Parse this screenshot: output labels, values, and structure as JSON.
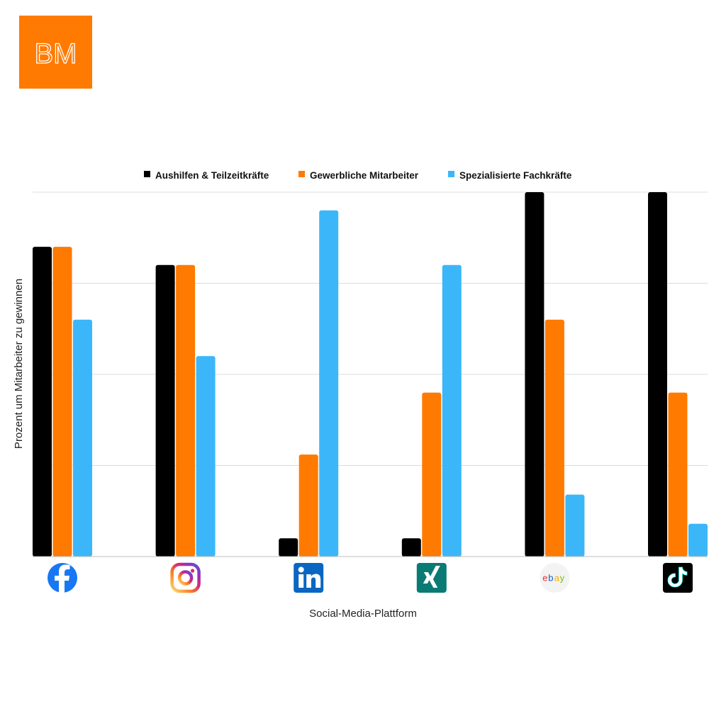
{
  "brand": {
    "logo_text": "BM",
    "color": "#FF7A00"
  },
  "chart_data": {
    "type": "bar",
    "title": "",
    "xlabel": "Social-Media-Plattform",
    "ylabel": "Prozent um Mitarbeiter zu gewinnen",
    "ylim": [
      0,
      100
    ],
    "grid": true,
    "legend_position": "top",
    "categories": [
      "Facebook",
      "Instagram",
      "LinkedIn",
      "Xing",
      "eBay",
      "TikTok"
    ],
    "category_icons": [
      "facebook-icon",
      "instagram-icon",
      "linkedin-icon",
      "xing-icon",
      "ebay-icon",
      "tiktok-icon"
    ],
    "series": [
      {
        "name": "Aushilfen & Teilzeitkräfte",
        "color": "#000000",
        "values": [
          85,
          80,
          5,
          5,
          100,
          100
        ]
      },
      {
        "name": "Gewerbliche Mitarbeiter",
        "color": "#FF7A00",
        "values": [
          85,
          80,
          28,
          45,
          65,
          45
        ]
      },
      {
        "name": "Spezialisierte Fachkräfte",
        "color": "#3BB7F9",
        "values": [
          65,
          55,
          95,
          80,
          17,
          9
        ]
      }
    ]
  }
}
